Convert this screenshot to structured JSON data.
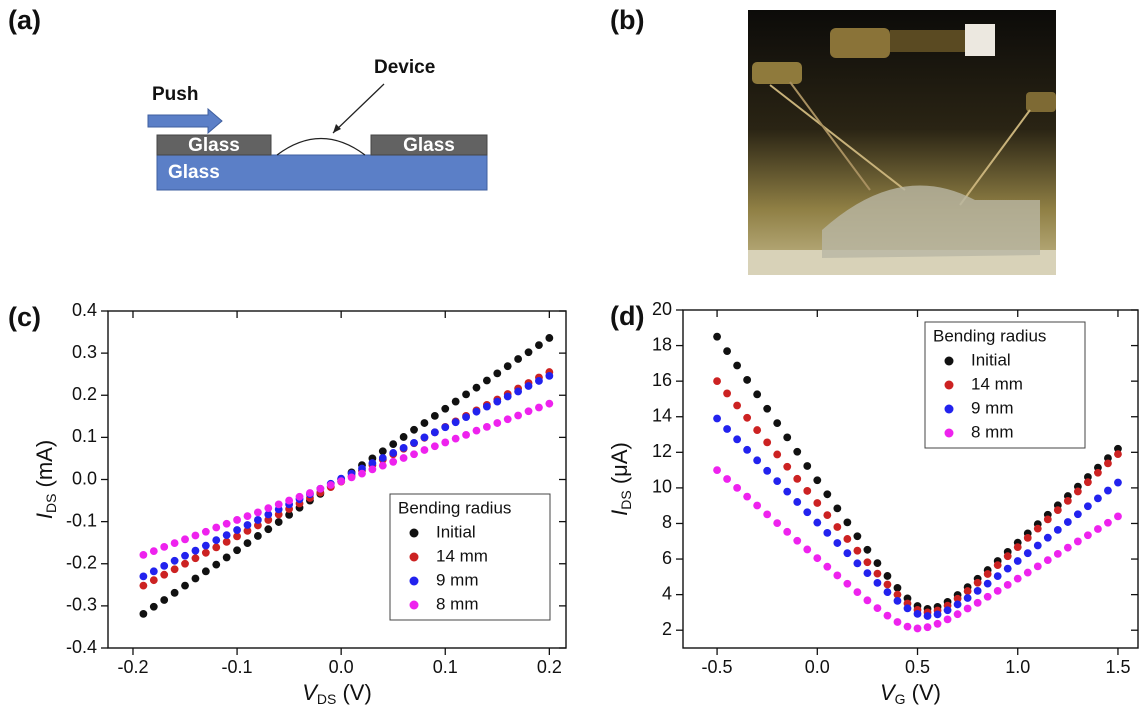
{
  "diagram": {
    "label": "(a)",
    "push": "Push",
    "device": "Device",
    "blocks": [
      "Glass",
      "Glass",
      "Glass"
    ]
  },
  "photo": {
    "label": "(b)"
  },
  "chart_data": [
    {
      "type": "scatter",
      "panel_label": "(c)",
      "xlabel": {
        "symbol": "V",
        "subscript": "DS",
        "unit": " (V)"
      },
      "ylabel": {
        "symbol": "I",
        "subscript": "DS",
        "unit": " (mA)"
      },
      "xlim": [
        -0.224,
        0.216
      ],
      "ylim": [
        -0.4,
        0.4
      ],
      "xticks": [
        -0.2,
        -0.1,
        {
          "value": 0,
          "label": "0.0"
        },
        0.1,
        0.2
      ],
      "yticks": [
        -0.4,
        -0.3,
        -0.2,
        -0.1,
        {
          "value": 0,
          "label": "0.0"
        },
        0.1,
        0.2,
        0.3,
        0.4
      ],
      "legend_title": "Bending radius",
      "legend_position": "lower right",
      "x": [
        -0.19,
        -0.18,
        -0.17,
        -0.16,
        -0.15,
        -0.14,
        -0.13,
        -0.12,
        -0.11,
        -0.1,
        -0.09,
        -0.08,
        -0.07,
        -0.06,
        -0.05,
        -0.04,
        -0.03,
        -0.02,
        -0.01,
        0,
        0.01,
        0.02,
        0.03,
        0.04,
        0.05,
        0.06,
        0.07,
        0.08,
        0.09,
        0.1,
        0.11,
        0.12,
        0.13,
        0.14,
        0.15,
        0.16,
        0.17,
        0.18,
        0.19,
        0.2
      ],
      "series": [
        {
          "name": "Initial",
          "color": "#111111",
          "values": [
            -0.319,
            -0.302,
            -0.286,
            -0.269,
            -0.252,
            -0.235,
            -0.218,
            -0.202,
            -0.185,
            -0.168,
            -0.151,
            -0.134,
            -0.118,
            -0.101,
            -0.084,
            -0.067,
            -0.05,
            -0.034,
            -0.017,
            0,
            0.017,
            0.034,
            0.05,
            0.067,
            0.084,
            0.101,
            0.118,
            0.134,
            0.151,
            0.168,
            0.185,
            0.202,
            0.218,
            0.235,
            0.252,
            0.269,
            0.286,
            0.302,
            0.319,
            0.336
          ]
        },
        {
          "name": "14 mm",
          "color": "#cc2222",
          "values": [
            -0.252,
            -0.239,
            -0.226,
            -0.213,
            -0.2,
            -0.187,
            -0.174,
            -0.161,
            -0.148,
            -0.135,
            -0.122,
            -0.109,
            -0.096,
            -0.083,
            -0.07,
            -0.057,
            -0.044,
            -0.031,
            -0.018,
            -0.005,
            0.008,
            0.021,
            0.034,
            0.047,
            0.06,
            0.073,
            0.086,
            0.099,
            0.112,
            0.125,
            0.138,
            0.151,
            0.164,
            0.177,
            0.19,
            0.203,
            0.216,
            0.229,
            0.242,
            0.255
          ]
        },
        {
          "name": "9 mm",
          "color": "#2222ee",
          "values": [
            -0.23,
            -0.218,
            -0.205,
            -0.193,
            -0.181,
            -0.169,
            -0.157,
            -0.144,
            -0.132,
            -0.12,
            -0.108,
            -0.096,
            -0.083,
            -0.071,
            -0.059,
            -0.047,
            -0.035,
            -0.022,
            -0.01,
            0.002,
            0.014,
            0.026,
            0.039,
            0.051,
            0.063,
            0.075,
            0.087,
            0.1,
            0.112,
            0.124,
            0.136,
            0.148,
            0.161,
            0.173,
            0.185,
            0.197,
            0.209,
            0.222,
            0.234,
            0.246
          ]
        },
        {
          "name": "8 mm",
          "color": "#ee22ee",
          "values": [
            -0.179,
            -0.17,
            -0.16,
            -0.151,
            -0.142,
            -0.133,
            -0.124,
            -0.114,
            -0.105,
            -0.096,
            -0.087,
            -0.078,
            -0.068,
            -0.059,
            -0.05,
            -0.041,
            -0.032,
            -0.022,
            -0.013,
            -0.004,
            0.005,
            0.014,
            0.024,
            0.033,
            0.042,
            0.051,
            0.06,
            0.07,
            0.079,
            0.088,
            0.097,
            0.106,
            0.116,
            0.125,
            0.134,
            0.143,
            0.152,
            0.162,
            0.171,
            0.18
          ]
        }
      ]
    },
    {
      "type": "scatter",
      "panel_label": "(d)",
      "xlabel": {
        "symbol": "V",
        "subscript": "G",
        "unit": " (V)"
      },
      "ylabel": {
        "symbol": "I",
        "subscript": "DS",
        "unit": " (μA)"
      },
      "xlim": [
        -0.67,
        1.6
      ],
      "ylim": [
        1,
        20
      ],
      "xticks": [
        -0.5,
        {
          "value": 0,
          "label": "0.0"
        },
        0.5,
        {
          "value": 1,
          "label": "1.0"
        },
        1.5
      ],
      "yticks": [
        2,
        4,
        6,
        8,
        10,
        12,
        14,
        16,
        18,
        20
      ],
      "legend_title": "Bending radius",
      "legend_position": "upper right",
      "x": [
        -0.5,
        -0.45,
        -0.4,
        -0.35,
        -0.3,
        -0.25,
        -0.2,
        -0.15,
        -0.1,
        -0.05,
        0,
        0.05,
        0.1,
        0.15,
        0.2,
        0.25,
        0.3,
        0.35,
        0.4,
        0.45,
        0.5,
        0.55,
        0.6,
        0.65,
        0.7,
        0.75,
        0.8,
        0.85,
        0.9,
        0.95,
        1,
        1.05,
        1.1,
        1.15,
        1.2,
        1.25,
        1.3,
        1.35,
        1.4,
        1.45,
        1.5
      ],
      "series": [
        {
          "name": "Initial",
          "color": "#111111",
          "values": [
            18.5,
            17.69,
            16.88,
            16.07,
            15.26,
            14.45,
            13.64,
            12.84,
            12.03,
            11.23,
            10.43,
            9.64,
            8.85,
            8.06,
            7.28,
            6.52,
            5.77,
            5.05,
            4.38,
            3.79,
            3.36,
            3.2,
            3.31,
            3.59,
            3.98,
            4.42,
            4.89,
            5.38,
            5.89,
            6.4,
            6.92,
            7.44,
            7.96,
            8.49,
            9.02,
            9.54,
            10.07,
            10.61,
            11.14,
            11.67,
            12.2
          ]
        },
        {
          "name": "14 mm",
          "color": "#cc2222",
          "values": [
            16,
            15.31,
            14.63,
            13.94,
            13.25,
            12.56,
            11.88,
            11.19,
            10.51,
            9.83,
            9.15,
            8.47,
            7.8,
            7.13,
            6.47,
            5.82,
            5.18,
            4.57,
            4,
            3.5,
            3.14,
            3,
            3.11,
            3.38,
            3.77,
            4.2,
            4.67,
            5.16,
            5.66,
            6.16,
            6.67,
            7.19,
            7.71,
            8.23,
            8.75,
            9.27,
            9.8,
            10.32,
            10.85,
            11.38,
            11.9
          ]
        },
        {
          "name": "9 mm",
          "color": "#2222ee",
          "values": [
            13.9,
            13.31,
            12.73,
            12.14,
            11.55,
            10.96,
            10.38,
            9.79,
            9.21,
            8.63,
            8.05,
            7.47,
            6.9,
            6.33,
            5.76,
            5.21,
            4.66,
            4.14,
            3.65,
            3.23,
            2.92,
            2.8,
            2.89,
            3.12,
            3.45,
            3.81,
            4.21,
            4.62,
            5.04,
            5.46,
            5.89,
            6.33,
            6.76,
            7.2,
            7.64,
            8.08,
            8.52,
            8.97,
            9.41,
            9.85,
            10.3
          ]
        },
        {
          "name": "8 mm",
          "color": "#ee22ee",
          "values": [
            11,
            10.5,
            10,
            9.51,
            9.01,
            8.51,
            8.02,
            7.53,
            7.03,
            6.54,
            6.05,
            5.57,
            5.08,
            4.61,
            4.14,
            3.68,
            3.24,
            2.82,
            2.46,
            2.2,
            2.1,
            2.17,
            2.36,
            2.61,
            2.9,
            3.22,
            3.54,
            3.88,
            4.21,
            4.55,
            4.9,
            5.24,
            5.59,
            5.94,
            6.29,
            6.64,
            6.99,
            7.34,
            7.69,
            8.04,
            8.4
          ]
        }
      ]
    }
  ]
}
